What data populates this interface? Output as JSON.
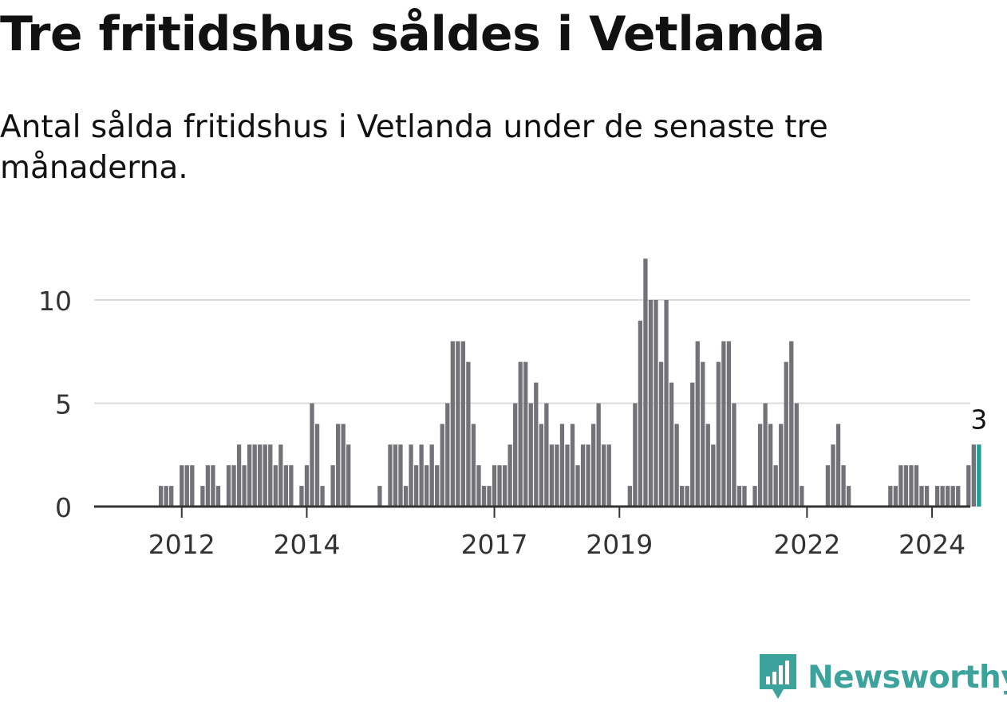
{
  "title": "Tre fritidshus såldes i Vetlanda",
  "subtitle": "Antal sålda fritidshus i Vetlanda under de senaste tre månaderna.",
  "brand": "Newsworthy",
  "colors": {
    "bar": "#737278",
    "highlight": "#1e9e96",
    "grid": "#dcdcdc",
    "axis": "#333333",
    "brand": "#3ca39c"
  },
  "chart_data": {
    "type": "bar",
    "x_start": "2011-01",
    "interval": "month",
    "ylim": [
      0,
      12
    ],
    "yticks": [
      0,
      5,
      10
    ],
    "xticks": [
      "2012",
      "2014",
      "2017",
      "2019",
      "2022",
      "2024"
    ],
    "grid": true,
    "highlight_label": "3",
    "values": [
      0,
      0,
      0,
      0,
      0,
      0,
      0,
      0,
      1,
      1,
      1,
      0,
      2,
      2,
      2,
      0,
      1,
      2,
      2,
      1,
      0,
      2,
      2,
      3,
      2,
      3,
      3,
      3,
      3,
      3,
      2,
      3,
      2,
      2,
      0,
      1,
      2,
      5,
      4,
      1,
      0,
      2,
      4,
      4,
      3,
      0,
      0,
      0,
      0,
      0,
      1,
      0,
      3,
      3,
      3,
      1,
      3,
      2,
      3,
      2,
      3,
      2,
      4,
      5,
      8,
      8,
      8,
      7,
      4,
      2,
      1,
      1,
      2,
      2,
      2,
      3,
      5,
      7,
      7,
      5,
      6,
      4,
      5,
      3,
      3,
      4,
      3,
      4,
      2,
      3,
      3,
      4,
      5,
      3,
      3,
      0,
      0,
      0,
      1,
      5,
      9,
      12,
      10,
      10,
      7,
      10,
      6,
      4,
      1,
      1,
      6,
      8,
      7,
      4,
      3,
      7,
      8,
      8,
      5,
      1,
      1,
      0,
      1,
      4,
      5,
      4,
      2,
      4,
      7,
      8,
      5,
      1,
      0,
      0,
      0,
      0,
      2,
      3,
      4,
      2,
      1,
      0,
      0,
      0,
      0,
      0,
      0,
      0,
      1,
      1,
      2,
      2,
      2,
      2,
      1,
      1,
      0,
      1,
      1,
      1,
      1,
      1,
      0,
      2,
      3,
      3
    ]
  }
}
